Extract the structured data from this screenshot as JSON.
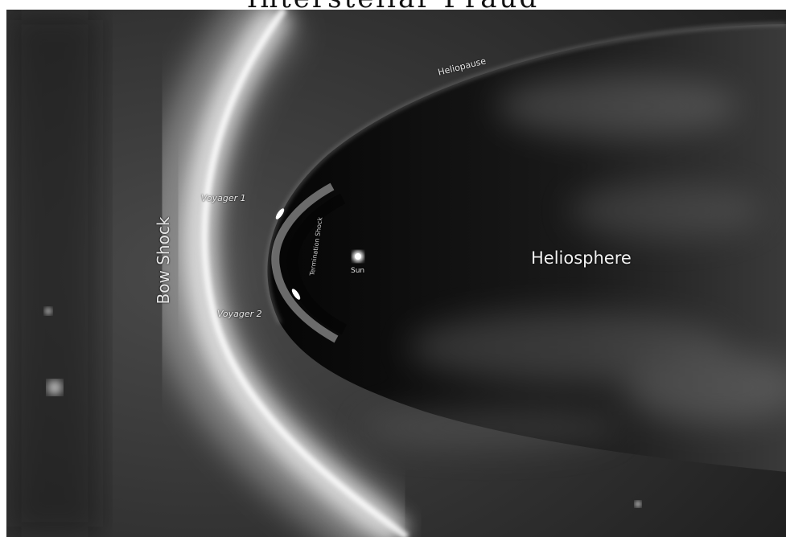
{
  "title": "Interstellar Fraud",
  "labels": {
    "heliopause": "Heliopause",
    "bow_shock": "Bow Shock",
    "voyager_1": "Voyager 1",
    "voyager_2": "Voyager 2",
    "termination_shock": "Termination Shock",
    "sun": "Sun",
    "heliosphere": "Heliosphere"
  },
  "colors": {
    "background": "#3a3a3a",
    "bow_shock_glow": "#f0f0f0",
    "heliosphere_interior": "#0b0b0b",
    "label_text": "#e6e6e6"
  }
}
